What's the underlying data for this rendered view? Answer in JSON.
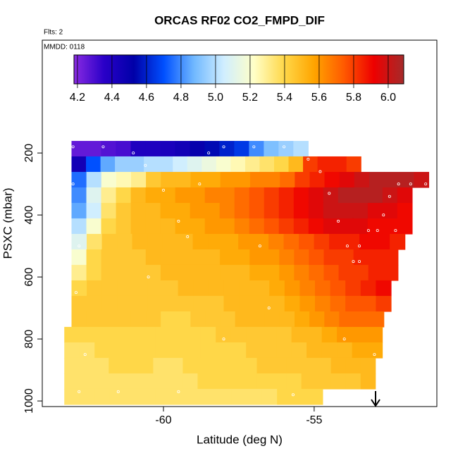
{
  "chart_data": {
    "type": "heatmap",
    "title": "ORCAS RF02 CO2_FMPD_DIF",
    "subtitle": "Flts: 2",
    "annotation": "MMDD: 0118",
    "x_label": "Latitude (deg N)",
    "y_label": "PSXC (mbar)",
    "xlim": [
      -64.02,
      -50.93
    ],
    "ylim": [
      1018,
      -164
    ],
    "xticks": [
      -60,
      -55
    ],
    "yticks": [
      200,
      400,
      600,
      800,
      1000
    ],
    "colorbar": {
      "lim": [
        4.18,
        6.09
      ],
      "ticks": [
        4.2,
        4.4,
        4.6,
        4.8,
        {
          "value": 5,
          "label": "5.0"
        },
        5.2,
        5.4,
        5.6,
        5.8,
        {
          "value": 6,
          "label": "6.0"
        }
      ],
      "colors": [
        "#8a2be2",
        "#2a00c8",
        "#0000a8",
        "#0050ff",
        "#70b8ff",
        "#d0eeff",
        "#ffffc8",
        "#ffd84a",
        "#ffa500",
        "#ff5a00",
        "#ee0000",
        "#a52a2a"
      ]
    },
    "rows": [
      {
        "pmin": 161,
        "pmax": 211,
        "lat_min": -63.05,
        "lat_max": -55.2,
        "values": [
          4.25,
          4.25,
          4.28,
          4.3,
          4.4,
          4.4,
          4.42,
          4.45,
          4.5,
          4.55,
          4.6,
          4.65,
          4.8,
          4.9,
          4.95,
          5.0
        ]
      },
      {
        "pmin": 211,
        "pmax": 261,
        "lat_min": -63.05,
        "lat_max": -53.45,
        "values": [
          4.45,
          4.7,
          4.85,
          4.95,
          4.95,
          5.0,
          5.0,
          5.05,
          5.1,
          5.15,
          5.2,
          5.25,
          5.3,
          5.35,
          5.4,
          5.5,
          5.8,
          5.85,
          5.85,
          5.8
        ]
      },
      {
        "pmin": 261,
        "pmax": 311,
        "lat_min": -63.05,
        "lat_max": -51.2,
        "values": [
          4.75,
          5.0,
          5.2,
          5.25,
          5.3,
          5.45,
          5.5,
          5.5,
          5.55,
          5.55,
          5.6,
          5.6,
          5.65,
          5.65,
          5.7,
          5.8,
          5.85,
          5.9,
          5.95,
          6.0,
          6.05,
          6.05,
          6.05,
          6.0
        ]
      },
      {
        "pmin": 311,
        "pmax": 361,
        "lat_min": -63.05,
        "lat_max": -51.75,
        "values": [
          4.8,
          5.1,
          5.3,
          5.4,
          5.5,
          5.55,
          5.55,
          5.6,
          5.6,
          5.65,
          5.65,
          5.7,
          5.75,
          5.8,
          5.85,
          5.9,
          5.95,
          6.0,
          6.05,
          6.05,
          6.05,
          6.0,
          5.95
        ]
      },
      {
        "pmin": 361,
        "pmax": 411,
        "lat_min": -63.05,
        "lat_max": -51.75,
        "values": [
          4.85,
          5.05,
          5.35,
          5.45,
          5.5,
          5.5,
          5.55,
          5.55,
          5.6,
          5.6,
          5.65,
          5.7,
          5.75,
          5.8,
          5.85,
          5.9,
          5.95,
          6.0,
          6.0,
          6.0,
          5.95,
          5.95,
          5.9
        ]
      },
      {
        "pmin": 411,
        "pmax": 461,
        "lat_min": -63.05,
        "lat_max": -51.75,
        "values": [
          5.0,
          5.2,
          5.4,
          5.45,
          5.5,
          5.5,
          5.5,
          5.55,
          5.55,
          5.6,
          5.6,
          5.65,
          5.7,
          5.75,
          5.8,
          5.85,
          5.9,
          5.95,
          5.95,
          5.95,
          5.9,
          5.9,
          5.9
        ]
      },
      {
        "pmin": 461,
        "pmax": 511,
        "lat_min": -63.05,
        "lat_max": -51.99,
        "values": [
          5.1,
          5.35,
          5.45,
          5.45,
          5.5,
          5.5,
          5.5,
          5.5,
          5.55,
          5.55,
          5.55,
          5.6,
          5.6,
          5.65,
          5.7,
          5.75,
          5.8,
          5.85,
          5.85,
          5.9,
          5.9,
          5.85
        ]
      },
      {
        "pmin": 511,
        "pmax": 561,
        "lat_min": -63.05,
        "lat_max": -52.22,
        "values": [
          5.2,
          5.4,
          5.45,
          5.45,
          5.45,
          5.5,
          5.5,
          5.5,
          5.5,
          5.5,
          5.55,
          5.55,
          5.6,
          5.6,
          5.65,
          5.7,
          5.75,
          5.8,
          5.8,
          5.85,
          5.85,
          5.85
        ]
      },
      {
        "pmin": 561,
        "pmax": 611,
        "lat_min": -63.05,
        "lat_max": -52.22,
        "values": [
          5.3,
          5.4,
          5.45,
          5.45,
          5.45,
          5.45,
          5.5,
          5.5,
          5.5,
          5.5,
          5.5,
          5.5,
          5.55,
          5.55,
          5.6,
          5.65,
          5.7,
          5.75,
          5.8,
          5.8,
          5.85,
          5.85
        ]
      },
      {
        "pmin": 611,
        "pmax": 661,
        "lat_min": -63.05,
        "lat_max": -52.45,
        "values": [
          5.4,
          5.45,
          5.45,
          5.45,
          5.45,
          5.45,
          5.45,
          5.5,
          5.5,
          5.5,
          5.5,
          5.5,
          5.5,
          5.55,
          5.6,
          5.65,
          5.7,
          5.75,
          5.8,
          5.85,
          5.9
        ]
      },
      {
        "pmin": 661,
        "pmax": 711,
        "lat_min": -63.05,
        "lat_max": -52.45,
        "values": [
          5.45,
          5.45,
          5.45,
          5.45,
          5.45,
          5.45,
          5.45,
          5.45,
          5.45,
          5.45,
          5.5,
          5.5,
          5.5,
          5.5,
          5.55,
          5.6,
          5.65,
          5.7,
          5.75,
          5.75,
          5.8
        ]
      },
      {
        "pmin": 711,
        "pmax": 761,
        "lat_min": -63.05,
        "lat_max": -52.69,
        "values": [
          5.45,
          5.45,
          5.45,
          5.45,
          5.45,
          5.45,
          5.4,
          5.4,
          5.45,
          5.45,
          5.45,
          5.5,
          5.5,
          5.5,
          5.5,
          5.55,
          5.6,
          5.65,
          5.7,
          5.7,
          5.7
        ]
      },
      {
        "pmin": 761,
        "pmax": 811,
        "lat_min": -63.29,
        "lat_max": -52.74,
        "values": [
          5.4,
          5.4,
          5.4,
          5.4,
          5.4,
          5.4,
          5.4,
          5.4,
          5.4,
          5.4,
          5.45,
          5.45,
          5.45,
          5.45,
          5.45,
          5.5,
          5.5,
          5.55,
          5.6,
          5.6,
          5.6
        ]
      },
      {
        "pmin": 811,
        "pmax": 861,
        "lat_min": -63.29,
        "lat_max": -52.74,
        "values": [
          5.35,
          5.35,
          5.4,
          5.4,
          5.4,
          5.4,
          5.4,
          5.4,
          5.4,
          5.4,
          5.4,
          5.4,
          5.45,
          5.45,
          5.45,
          5.45,
          5.5,
          5.5,
          5.5,
          5.55,
          5.55
        ]
      },
      {
        "pmin": 861,
        "pmax": 911,
        "lat_min": -63.29,
        "lat_max": -52.97,
        "values": [
          5.35,
          5.35,
          5.35,
          5.4,
          5.4,
          5.4,
          5.35,
          5.35,
          5.4,
          5.4,
          5.4,
          5.4,
          5.4,
          5.45,
          5.45,
          5.45,
          5.45,
          5.45,
          5.5,
          5.5,
          5.5
        ]
      },
      {
        "pmin": 911,
        "pmax": 961,
        "lat_min": -63.29,
        "lat_max": -52.97,
        "values": [
          5.35,
          5.35,
          5.35,
          5.35,
          5.35,
          5.35,
          5.35,
          5.35,
          5.35,
          5.4,
          5.4,
          5.4,
          5.4,
          5.4,
          5.4,
          5.4,
          5.45,
          5.45,
          5.45,
          5.45,
          5.5
        ]
      },
      {
        "pmin": 961,
        "pmax": 1011,
        "lat_min": -63.29,
        "lat_max": -54.72,
        "values": [
          5.35,
          5.35,
          5.35,
          5.35,
          5.35,
          5.35,
          5.35,
          5.35,
          5.35,
          5.35,
          5.35,
          5.35,
          5.35,
          5.35,
          5.4,
          5.4,
          5.4
        ]
      }
    ],
    "track": {
      "lat": [
        -51.3,
        -51.8,
        -52.2,
        -52.5,
        -52.7,
        -52.9,
        -53.2,
        -53.5,
        -53.7,
        -53.9,
        -54.2,
        -54.5,
        -54.8,
        -55.2,
        -56,
        -57,
        -58,
        -58.5,
        -58.8,
        -59.2,
        -59.5,
        -60,
        -60.6,
        -61,
        -62,
        -63,
        -63,
        -62.8,
        -62.9,
        -62.6,
        -62.8,
        -61.5,
        -60.5,
        -59.5,
        -58,
        -56.8,
        -56.5,
        -55.7,
        -54,
        -53.5,
        -52.3,
        -51.8,
        -52,
        -53
      ],
      "pressure": [
        300,
        300,
        300,
        340,
        400,
        450,
        450,
        500,
        550,
        500,
        420,
        330,
        260,
        220,
        180,
        180,
        180,
        200,
        300,
        470,
        420,
        320,
        240,
        200,
        180,
        180,
        300,
        500,
        650,
        850,
        970,
        970,
        600,
        970,
        800,
        500,
        700,
        980,
        800,
        550,
        450,
        600,
        750,
        850
      ]
    }
  }
}
